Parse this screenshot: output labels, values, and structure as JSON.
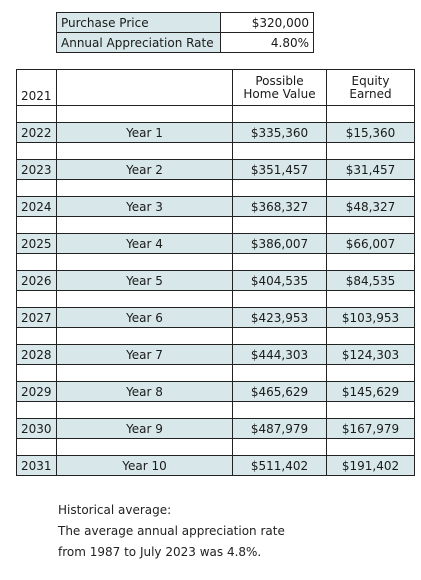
{
  "summary": {
    "purchase_price_label": "Purchase Price",
    "purchase_price_value": "$320,000",
    "appreciation_rate_label": "Annual Appreciation Rate",
    "appreciation_rate_value": "4.80%"
  },
  "table": {
    "base_year": "2021",
    "header_home_value": [
      "Possible",
      "Home Value"
    ],
    "header_equity": [
      "Equity",
      "Earned"
    ],
    "rows": [
      {
        "year": "2022",
        "label": "Year 1",
        "home_value": "$335,360",
        "equity": "$15,360"
      },
      {
        "year": "2023",
        "label": "Year 2",
        "home_value": "$351,457",
        "equity": "$31,457"
      },
      {
        "year": "2024",
        "label": "Year 3",
        "home_value": "$368,327",
        "equity": "$48,327"
      },
      {
        "year": "2025",
        "label": "Year 4",
        "home_value": "$386,007",
        "equity": "$66,007"
      },
      {
        "year": "2026",
        "label": "Year 5",
        "home_value": "$404,535",
        "equity": "$84,535"
      },
      {
        "year": "2027",
        "label": "Year 6",
        "home_value": "$423,953",
        "equity": "$103,953"
      },
      {
        "year": "2028",
        "label": "Year 7",
        "home_value": "$444,303",
        "equity": "$124,303"
      },
      {
        "year": "2029",
        "label": "Year 8",
        "home_value": "$465,629",
        "equity": "$145,629"
      },
      {
        "year": "2030",
        "label": "Year 9",
        "home_value": "$487,979",
        "equity": "$167,979"
      },
      {
        "year": "2031",
        "label": "Year 10",
        "home_value": "$511,402",
        "equity": "$191,402"
      }
    ]
  },
  "note": {
    "heading": "Historical average:",
    "line1": "The average annual appreciation rate",
    "line2": "from 1987 to July 2023 was 4.8%."
  }
}
